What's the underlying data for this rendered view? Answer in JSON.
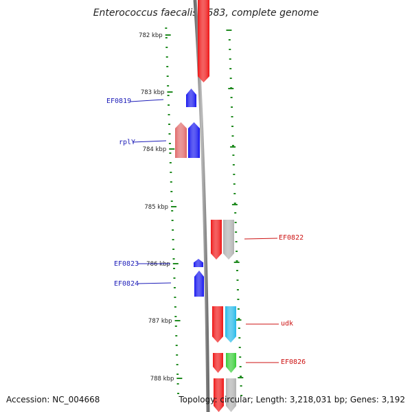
{
  "title": "Enterococcus faecalis V583, complete genome",
  "footer": {
    "accession": "Accession: NC_004668",
    "summary": "Topology: circular; Length: 3,218,031 bp; Genes: 3,192"
  },
  "colors": {
    "backbone": "#8a8a8a",
    "tick": "#1f8a1f",
    "label_forward": "#1c1cb8",
    "label_reverse": "#cc1111"
  },
  "scale": {
    "labels": [
      "782 kbp",
      "783 kbp",
      "784 kbp",
      "785 kbp",
      "786 kbp",
      "787 kbp",
      "788 kbp"
    ]
  },
  "genes": [
    {
      "label": "",
      "color": "#ee1111",
      "strand": "reverse"
    },
    {
      "label": "EF0819",
      "color": "#1111ee",
      "strand": "forward"
    },
    {
      "label": "",
      "color": "#e06666",
      "strand": "forward"
    },
    {
      "label": "rplY",
      "color": "#1111ee",
      "strand": "forward"
    },
    {
      "label": "",
      "color": "#ee1111",
      "strand": "reverse"
    },
    {
      "label": "EF0822",
      "color": "#b0b0b0",
      "strand": "reverse"
    },
    {
      "label": "EF0823",
      "color": "#1111ee",
      "strand": "forward"
    },
    {
      "label": "EF0824",
      "color": "#1111ee",
      "strand": "forward"
    },
    {
      "label": "",
      "color": "#ee1111",
      "strand": "reverse"
    },
    {
      "label": "udk",
      "color": "#22b8e8",
      "strand": "reverse"
    },
    {
      "label": "",
      "color": "#ee1111",
      "strand": "reverse"
    },
    {
      "label": "EF0826",
      "color": "#33cc33",
      "strand": "reverse"
    },
    {
      "label": "",
      "color": "#ee1111",
      "strand": "reverse"
    },
    {
      "label": "",
      "color": "#b0b0b0",
      "strand": "reverse"
    }
  ]
}
